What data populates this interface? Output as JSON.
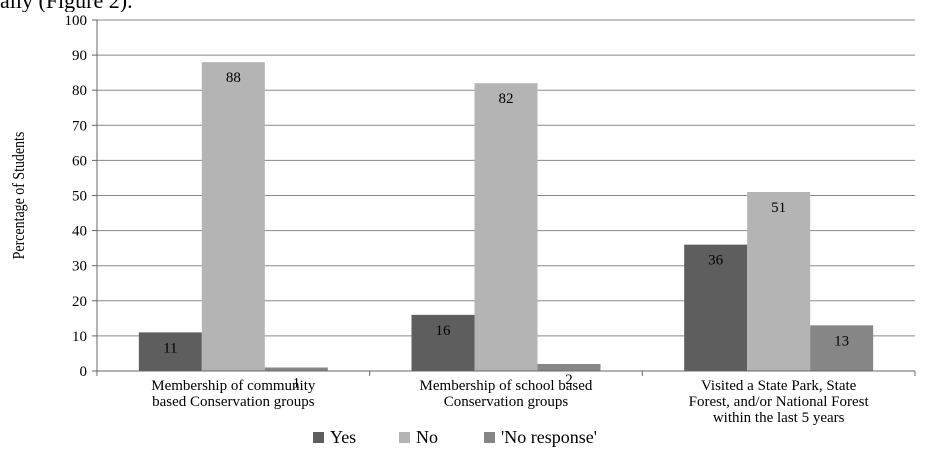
{
  "caption_fragment": "ally (Figure 2).",
  "chart_data": {
    "type": "bar",
    "ylabel": "Percentage of Students",
    "xlabel": "",
    "ylim": [
      0,
      100
    ],
    "yticks": [
      0,
      10,
      20,
      30,
      40,
      50,
      60,
      70,
      80,
      90,
      100
    ],
    "grid": true,
    "legend_position": "bottom",
    "categories": [
      [
        "Membership of community",
        "based Conservation groups"
      ],
      [
        "Membership of school based",
        "Conservation groups"
      ],
      [
        "Visited a State Park, State",
        "Forest, and/or National Forest",
        "within the last 5 years"
      ]
    ],
    "series": [
      {
        "name": "Yes",
        "color": "#5e5e5e",
        "values": [
          11,
          16,
          36
        ]
      },
      {
        "name": "No",
        "color": "#b4b4b4",
        "values": [
          88,
          82,
          51
        ]
      },
      {
        "name": "'No response'",
        "color": "#868686",
        "values": [
          1,
          2,
          13
        ]
      }
    ]
  }
}
